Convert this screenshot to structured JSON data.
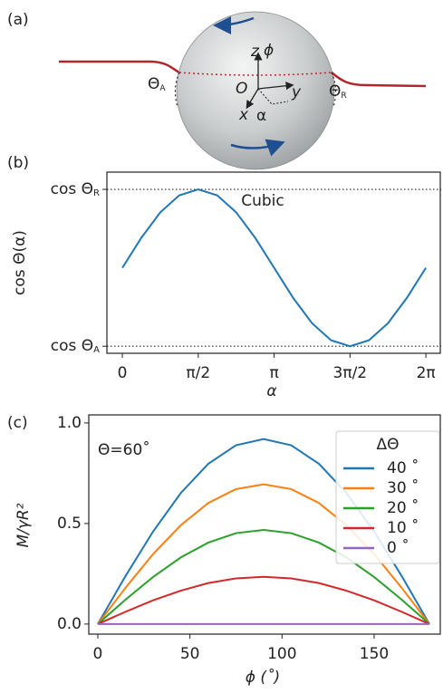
{
  "diagram": {
    "panel_label": "(a)",
    "z": "z",
    "phi": "ϕ",
    "origin": "O",
    "y": "y",
    "x": "x",
    "alpha": "α",
    "theta_a": {
      "text": "Θ",
      "subscript": "A"
    },
    "theta_r": {
      "text": "Θ",
      "subscript": "R"
    }
  },
  "chart_data": [
    {
      "type": "line",
      "panel_label": "(b)",
      "annotation": "Cubic",
      "x_label": "α",
      "y_label": "cos Θ(α)",
      "color": "#1f77b4",
      "x": [
        0,
        0.3927,
        0.7854,
        1.1781,
        1.5708,
        1.9635,
        2.3562,
        2.7489,
        3.1416,
        3.5343,
        3.927,
        4.3197,
        4.7124,
        5.1051,
        5.4978,
        5.8905,
        6.2832
      ],
      "values": [
        0,
        0.3827,
        0.7071,
        0.9239,
        1,
        0.9239,
        0.7071,
        0.3827,
        0,
        -0.3827,
        -0.7071,
        -0.9239,
        -1,
        -0.9239,
        -0.7071,
        -0.3827,
        0
      ],
      "xlim": [
        -0.32,
        6.6
      ],
      "ylim": [
        -1.09,
        1.22
      ],
      "xticks": [
        0,
        {
          "value": 1.5708,
          "label": "π/2"
        },
        {
          "value": 3.1416,
          "label": "π"
        },
        {
          "value": 4.7124,
          "label": "3π/2"
        },
        {
          "value": 6.2832,
          "label": "2π"
        }
      ],
      "yticks": [
        {
          "value": -1,
          "label": "cos Θ",
          "subscript": "A"
        },
        {
          "value": 1,
          "label": "cos Θ",
          "subscript": "R"
        }
      ],
      "grid": true
    },
    {
      "type": "line",
      "panel_label": "(c)",
      "annotation": "Θ=60˚",
      "x_label": "ϕ (˚)",
      "y_label": "M/γR²",
      "legend_title": "ΔΘ",
      "legend": "upper right",
      "x": [
        0,
        15,
        30,
        45,
        60,
        75,
        90,
        105,
        120,
        135,
        150,
        165,
        180
      ],
      "series": [
        {
          "name": "40 ˚",
          "color": "#1f77b4",
          "values": [
            0,
            0.238,
            0.46,
            0.651,
            0.797,
            0.889,
            0.92,
            0.889,
            0.797,
            0.651,
            0.46,
            0.238,
            0
          ]
        },
        {
          "name": "30 ˚",
          "color": "#ff7f0e",
          "values": [
            0,
            0.18,
            0.348,
            0.491,
            0.602,
            0.671,
            0.695,
            0.671,
            0.602,
            0.491,
            0.348,
            0.18,
            0
          ]
        },
        {
          "name": "20 ˚",
          "color": "#2ca02c",
          "values": [
            0,
            0.121,
            0.234,
            0.331,
            0.405,
            0.452,
            0.468,
            0.452,
            0.405,
            0.331,
            0.234,
            0.121,
            0
          ]
        },
        {
          "name": "10 ˚",
          "color": "#d62728",
          "values": [
            0,
            0.061,
            0.118,
            0.166,
            0.204,
            0.227,
            0.235,
            0.227,
            0.204,
            0.166,
            0.118,
            0.061,
            0
          ]
        },
        {
          "name": "0 ˚",
          "color": "#9467bd",
          "values": [
            0,
            0,
            0,
            0,
            0,
            0,
            0,
            0,
            0,
            0,
            0,
            0,
            0
          ]
        }
      ],
      "xlim": [
        -4.9,
        186.4
      ],
      "ylim": [
        -0.05,
        1.04
      ],
      "xticks": [
        0,
        50,
        100,
        150
      ],
      "yticks": [
        {
          "value": 0,
          "label": "0.0"
        },
        {
          "value": 0.5,
          "label": "0.5"
        },
        {
          "value": 1,
          "label": "1.0"
        }
      ],
      "grid": false
    }
  ]
}
